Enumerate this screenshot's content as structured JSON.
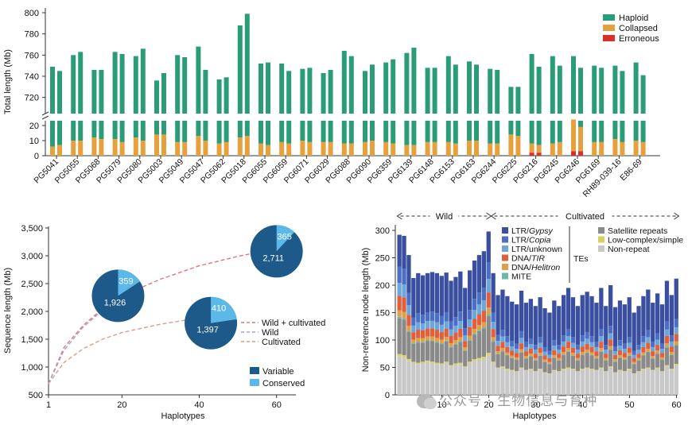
{
  "colors": {
    "haploid": "#2a9d78",
    "collapsed": "#e6a03c",
    "erroneous": "#d9302a",
    "variable": "#1d5a8a",
    "conserved": "#5bb8e8",
    "curve_both": "#e0787a",
    "curve_wild": "#a9a0c9",
    "curve_cultivated": "#d4a08a",
    "ltr_gypsy": "#3a4fa0",
    "ltr_copia": "#4a6fc4",
    "ltr_unknown": "#6ca6da",
    "dna_tir": "#e0603c",
    "dna_helitron": "#e0a04a",
    "mite": "#6bb7a8",
    "satellite": "#8a8a8a",
    "lowcomplex": "#d8d060",
    "nonrepeat": "#c8c8c8"
  },
  "chart_data": [
    {
      "type": "bar",
      "subtype": "stacked-broken-axis",
      "ylabel": "Total length (Mb)",
      "ylim_upper": [
        710,
        800
      ],
      "yticks_upper": [
        "800",
        "780",
        "760",
        "740",
        "720"
      ],
      "ylim_lower": [
        0,
        25
      ],
      "yticks_lower": [
        "20",
        "10",
        "0"
      ],
      "legend": [
        {
          "name": "Haploid",
          "color_key": "haploid"
        },
        {
          "name": "Collapsed",
          "color_key": "collapsed"
        },
        {
          "name": "Erroneous",
          "color_key": "erroneous"
        }
      ],
      "categories": [
        "PG5041",
        "PG5055",
        "PG5068",
        "PG5079",
        "PG5080",
        "PG5003",
        "PG5049",
        "PG5047",
        "PG5062",
        "PG5018",
        "PG6055",
        "PG6059",
        "PG6071",
        "PG6029",
        "PG6088",
        "PG6090",
        "PG6359",
        "PG6139",
        "PG6148",
        "PG6153",
        "PG6163",
        "PG6244",
        "PG6225",
        "PG6216",
        "PG6245",
        "PG6246",
        "PG6169",
        "RH89-039-16",
        "E86-69"
      ],
      "series": [
        {
          "name": "Total",
          "values": [
            [
              749,
              745
            ],
            [
              760,
              763
            ],
            [
              746,
              746
            ],
            [
              763,
              761
            ],
            [
              759,
              766
            ],
            [
              736,
              743
            ],
            [
              760,
              758
            ],
            [
              768,
              746
            ],
            [
              737,
              739
            ],
            [
              788,
              799
            ],
            [
              752,
              753
            ],
            [
              752,
              745
            ],
            [
              747,
              748
            ],
            [
              743,
              746
            ],
            [
              764,
              759
            ],
            [
              745,
              751
            ],
            [
              753,
              756
            ],
            [
              762,
              767
            ],
            [
              748,
              748
            ],
            [
              759,
              751
            ],
            [
              754,
              751
            ],
            [
              747,
              746
            ],
            [
              730,
              730
            ],
            [
              761,
              749
            ],
            [
              759,
              750
            ],
            [
              759,
              748
            ],
            [
              750,
              748
            ],
            [
              750,
              745
            ],
            [
              753,
              741
            ]
          ]
        },
        {
          "name": "Collapsed",
          "values": [
            [
              6,
              7
            ],
            [
              10,
              10
            ],
            [
              12,
              11
            ],
            [
              11,
              9
            ],
            [
              12,
              10
            ],
            [
              14,
              14
            ],
            [
              9,
              9
            ],
            [
              13,
              10
            ],
            [
              8,
              9
            ],
            [
              12,
              13
            ],
            [
              8,
              7
            ],
            [
              9,
              8
            ],
            [
              10,
              9
            ],
            [
              9,
              9
            ],
            [
              8,
              8
            ],
            [
              9,
              10
            ],
            [
              9,
              8
            ],
            [
              7,
              7
            ],
            [
              9,
              9
            ],
            [
              9,
              8
            ],
            [
              10,
              10
            ],
            [
              8,
              8
            ],
            [
              14,
              13
            ],
            [
              6,
              5
            ],
            [
              8,
              9
            ],
            [
              21,
              16
            ],
            [
              9,
              9
            ],
            [
              11,
              9
            ],
            [
              10,
              9
            ]
          ]
        },
        {
          "name": "Erroneous",
          "values": [
            [
              0,
              0
            ],
            [
              0,
              0
            ],
            [
              0,
              0
            ],
            [
              0,
              0
            ],
            [
              0,
              0
            ],
            [
              0,
              0
            ],
            [
              0,
              0
            ],
            [
              0,
              0
            ],
            [
              0,
              0
            ],
            [
              0,
              0
            ],
            [
              0,
              0
            ],
            [
              0,
              0
            ],
            [
              0,
              0
            ],
            [
              0,
              0
            ],
            [
              0,
              0
            ],
            [
              0,
              0
            ],
            [
              0,
              0
            ],
            [
              0,
              0
            ],
            [
              0,
              0
            ],
            [
              0,
              0
            ],
            [
              0,
              0
            ],
            [
              0,
              0
            ],
            [
              0,
              0
            ],
            [
              2,
              2
            ],
            [
              0,
              0
            ],
            [
              3,
              3
            ],
            [
              0,
              0
            ],
            [
              0,
              0
            ],
            [
              0,
              0
            ]
          ]
        }
      ]
    },
    {
      "type": "line",
      "subtype": "pangenome-growth-with-pies",
      "xlabel": "Haplotypes",
      "ylabel": "Sequence length (Mb)",
      "xlim": [
        1,
        65
      ],
      "ylim": [
        500,
        3500
      ],
      "xticks": [
        "1",
        "20",
        "40",
        "60"
      ],
      "yticks": [
        "500",
        "1,000",
        "1,500",
        "2,000",
        "2,500",
        "3,000",
        "3,500"
      ],
      "series": [
        {
          "name": "Wild + cultivated",
          "color_key": "curve_both",
          "x": [
            1,
            5,
            10,
            15,
            20,
            30,
            40,
            50,
            55
          ],
          "y": [
            700,
            1350,
            1750,
            2050,
            2280,
            2580,
            2820,
            2990,
            3060
          ]
        },
        {
          "name": "Wild",
          "color_key": "curve_wild",
          "x": [
            1,
            5,
            10,
            15,
            20
          ],
          "y": [
            700,
            1300,
            1720,
            2020,
            2280
          ]
        },
        {
          "name": "Cultivated",
          "color_key": "curve_cultivated",
          "x": [
            1,
            5,
            10,
            15,
            20,
            30,
            37
          ],
          "y": [
            700,
            1080,
            1330,
            1500,
            1620,
            1770,
            1850
          ]
        }
      ],
      "pies": [
        {
          "x": 19,
          "y": 2280,
          "variable": 1926,
          "conserved": 359,
          "variable_label": "1,926",
          "conserved_label": "359"
        },
        {
          "x": 43,
          "y": 1790,
          "variable": 1397,
          "conserved": 410,
          "variable_label": "1,397",
          "conserved_label": "410"
        },
        {
          "x": 60,
          "y": 3080,
          "variable": 2711,
          "conserved": 365,
          "variable_label": "2,711",
          "conserved_label": "365"
        }
      ],
      "legend_lines": [
        "Wild + cultivated",
        "Wild",
        "Cultivated"
      ],
      "legend_boxes": [
        "Variable",
        "Conserved"
      ]
    },
    {
      "type": "bar",
      "subtype": "stacked",
      "xlabel": "Haplotypes",
      "ylabel": "Non-reference node length (Mb)",
      "xlim": [
        1,
        60
      ],
      "ylim": [
        0,
        300
      ],
      "xticks": [
        "10",
        "20",
        "30",
        "40",
        "50",
        "60"
      ],
      "yticks": [
        "0",
        "50",
        "100",
        "150",
        "200",
        "250",
        "300"
      ],
      "group_labels": {
        "wild": "Wild",
        "cultivated": "Cultivated"
      },
      "wild_range": [
        1,
        20
      ],
      "cultivated_range": [
        21,
        60
      ],
      "legend_left": [
        {
          "name": "LTR/",
          "italic": "Gypsy",
          "color_key": "ltr_gypsy"
        },
        {
          "name": "LTR/",
          "italic": "Copia",
          "color_key": "ltr_copia"
        },
        {
          "name": "LTR/unknown",
          "italic": "",
          "color_key": "ltr_unknown"
        },
        {
          "name": "DNA/",
          "italic": "TIR",
          "color_key": "dna_tir"
        },
        {
          "name": "DNA/",
          "italic": "Helitron",
          "color_key": "dna_helitron"
        },
        {
          "name": "MITE",
          "italic": "",
          "color_key": "mite"
        }
      ],
      "tes_label": "TEs",
      "legend_right": [
        {
          "name": "Satellite repeats",
          "color_key": "satellite"
        },
        {
          "name": "Low-complex/simple",
          "color_key": "lowcomplex"
        },
        {
          "name": "Non-repeat",
          "color_key": "nonrepeat"
        }
      ],
      "stack_order": [
        "Non-repeat",
        "Low-complex/simple",
        "Satellite repeats",
        "MITE",
        "DNA/Helitron",
        "DNA/TIR",
        "LTR/unknown",
        "LTR/Copia",
        "LTR/Gypsy"
      ],
      "totals": [
        292,
        290,
        255,
        213,
        222,
        218,
        222,
        224,
        222,
        217,
        223,
        208,
        215,
        225,
        195,
        227,
        245,
        255,
        262,
        298,
        222,
        182,
        192,
        180,
        170,
        165,
        190,
        168,
        175,
        162,
        178,
        158,
        150,
        172,
        162,
        182,
        195,
        178,
        162,
        182,
        188,
        180,
        168,
        195,
        162,
        200,
        160,
        172,
        165,
        178,
        150,
        162,
        180,
        192,
        168,
        185,
        165,
        208,
        182,
        212
      ],
      "nonrepeat": [
        70,
        68,
        62,
        58,
        56,
        58,
        60,
        58,
        56,
        55,
        58,
        52,
        55,
        56,
        50,
        58,
        62,
        64,
        66,
        72,
        58,
        48,
        50,
        46,
        44,
        42,
        48,
        44,
        46,
        42,
        46,
        40,
        38,
        44,
        42,
        46,
        48,
        46,
        42,
        46,
        48,
        46,
        44,
        48,
        42,
        50,
        40,
        44,
        42,
        46,
        38,
        42,
        46,
        48,
        44,
        48,
        42,
        52,
        46,
        54
      ]
    }
  ],
  "watermark": "公众号 · 生物信息与育种"
}
